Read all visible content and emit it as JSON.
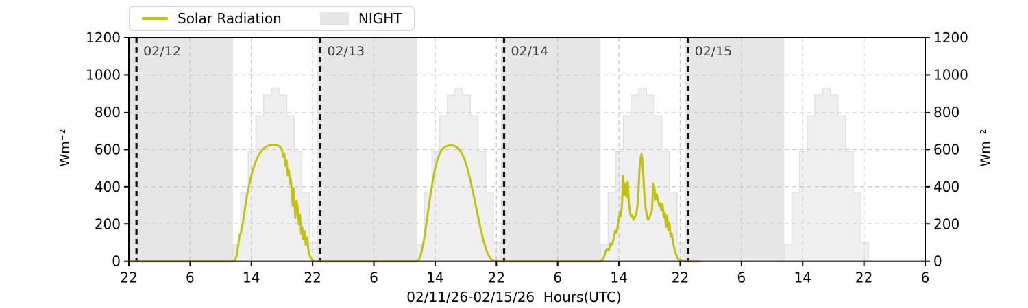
{
  "legend": {
    "items": [
      {
        "label": "Solar Radiation",
        "swatch": "line"
      },
      {
        "label": "NIGHT",
        "swatch": "patch"
      }
    ]
  },
  "colors": {
    "solar_line": "#c2c20c",
    "night_fill": "#e6e6e6",
    "envelope_fill": "#efefef",
    "envelope_edge": "#e0e0e0",
    "grid": "#c9c9c9",
    "day_boundary": "#111111",
    "date_label": "#3a3a3a",
    "axis": "#000000",
    "legend_border": "#d5d5d5"
  },
  "chart_data": {
    "type": "line",
    "title": "",
    "xlabel": "02/11/26-02/15/26  Hours(UTC)",
    "ylabel_left": "Wm⁻²",
    "ylabel_right": "Wm⁻²",
    "grid": true,
    "legend_position": "top-left",
    "xlim_hours_from_start": [
      0,
      104
    ],
    "x_start": "22:00 UTC 02/11/26",
    "ylim": [
      0,
      1200
    ],
    "yticks": [
      0,
      200,
      400,
      600,
      800,
      1000,
      1200
    ],
    "xtick_hours": [
      0,
      8,
      16,
      24,
      32,
      40,
      48,
      56,
      64,
      72,
      80,
      88,
      96,
      104
    ],
    "xtick_labels": [
      "22",
      "6",
      "14",
      "22",
      "6",
      "14",
      "22",
      "6",
      "14",
      "22",
      "6",
      "14",
      "22",
      "6"
    ],
    "day_boundaries": [
      {
        "hour": 1,
        "label": "02/12"
      },
      {
        "hour": 25,
        "label": "02/13"
      },
      {
        "hour": 49,
        "label": "02/14"
      },
      {
        "hour": 73,
        "label": "02/15"
      }
    ],
    "night_regions": [
      [
        0,
        13.6
      ],
      [
        24.6,
        37.6
      ],
      [
        48.6,
        61.6
      ],
      [
        72.6,
        85.6
      ]
    ],
    "clear_sky_envelope": {
      "day_start_hours": [
        13.6,
        37.6,
        61.6,
        85.6
      ],
      "hourly_step_values": [
        90,
        370,
        590,
        780,
        890,
        930,
        890,
        780,
        590,
        370,
        100
      ]
    },
    "series": [
      {
        "name": "Solar Radiation",
        "units": "Wm⁻²",
        "points": [
          [
            0,
            0
          ],
          [
            13.7,
            0
          ],
          [
            13.9,
            8
          ],
          [
            14.1,
            35
          ],
          [
            14.3,
            90
          ],
          [
            14.45,
            140
          ],
          [
            14.6,
            148
          ],
          [
            14.8,
            185
          ],
          [
            15.0,
            235
          ],
          [
            15.3,
            320
          ],
          [
            15.6,
            390
          ],
          [
            15.9,
            445
          ],
          [
            16.2,
            490
          ],
          [
            16.5,
            528
          ],
          [
            16.8,
            556
          ],
          [
            17.1,
            580
          ],
          [
            17.4,
            596
          ],
          [
            17.7,
            608
          ],
          [
            18.0,
            616
          ],
          [
            18.3,
            621
          ],
          [
            18.6,
            624
          ],
          [
            18.9,
            625
          ],
          [
            19.2,
            624
          ],
          [
            19.5,
            620
          ],
          [
            19.8,
            612
          ],
          [
            20.0,
            598
          ],
          [
            20.15,
            560
          ],
          [
            20.3,
            578
          ],
          [
            20.45,
            512
          ],
          [
            20.6,
            540
          ],
          [
            20.75,
            462
          ],
          [
            20.9,
            488
          ],
          [
            21.05,
            415
          ],
          [
            21.15,
            442
          ],
          [
            21.3,
            362
          ],
          [
            21.4,
            298
          ],
          [
            21.5,
            392
          ],
          [
            21.6,
            340
          ],
          [
            21.75,
            232
          ],
          [
            21.9,
            325
          ],
          [
            22.05,
            285
          ],
          [
            22.2,
            198
          ],
          [
            22.35,
            252
          ],
          [
            22.5,
            148
          ],
          [
            22.65,
            182
          ],
          [
            22.8,
            118
          ],
          [
            22.95,
            162
          ],
          [
            23.1,
            88
          ],
          [
            23.3,
            128
          ],
          [
            23.45,
            58
          ],
          [
            23.65,
            28
          ],
          [
            23.85,
            12
          ],
          [
            24.1,
            3
          ],
          [
            24.3,
            0
          ],
          [
            37.6,
            0
          ],
          [
            37.9,
            10
          ],
          [
            38.2,
            45
          ],
          [
            38.5,
            105
          ],
          [
            38.8,
            185
          ],
          [
            39.1,
            275
          ],
          [
            39.4,
            360
          ],
          [
            39.7,
            435
          ],
          [
            40.0,
            498
          ],
          [
            40.3,
            545
          ],
          [
            40.6,
            578
          ],
          [
            40.9,
            600
          ],
          [
            41.2,
            612
          ],
          [
            41.5,
            618
          ],
          [
            41.8,
            621
          ],
          [
            42.1,
            622
          ],
          [
            42.4,
            620
          ],
          [
            42.7,
            615
          ],
          [
            43.0,
            606
          ],
          [
            43.3,
            592
          ],
          [
            43.6,
            570
          ],
          [
            43.9,
            540
          ],
          [
            44.2,
            500
          ],
          [
            44.5,
            452
          ],
          [
            44.8,
            398
          ],
          [
            45.1,
            340
          ],
          [
            45.4,
            280
          ],
          [
            45.7,
            220
          ],
          [
            46.0,
            162
          ],
          [
            46.3,
            112
          ],
          [
            46.6,
            70
          ],
          [
            46.9,
            38
          ],
          [
            47.2,
            16
          ],
          [
            47.5,
            5
          ],
          [
            47.8,
            1
          ],
          [
            48.2,
            0
          ],
          [
            61.6,
            0
          ],
          [
            61.9,
            8
          ],
          [
            62.1,
            30
          ],
          [
            62.3,
            58
          ],
          [
            62.5,
            66
          ],
          [
            62.7,
            60
          ],
          [
            62.9,
            95
          ],
          [
            63.1,
            88
          ],
          [
            63.3,
            118
          ],
          [
            63.5,
            165
          ],
          [
            63.7,
            152
          ],
          [
            63.9,
            205
          ],
          [
            64.1,
            262
          ],
          [
            64.25,
            242
          ],
          [
            64.4,
            305
          ],
          [
            64.55,
            458
          ],
          [
            64.7,
            355
          ],
          [
            64.85,
            415
          ],
          [
            65.0,
            345
          ],
          [
            65.15,
            428
          ],
          [
            65.3,
            312
          ],
          [
            65.45,
            262
          ],
          [
            65.6,
            238
          ],
          [
            65.75,
            248
          ],
          [
            65.9,
            222
          ],
          [
            66.1,
            238
          ],
          [
            66.3,
            258
          ],
          [
            66.5,
            330
          ],
          [
            66.7,
            505
          ],
          [
            66.85,
            560
          ],
          [
            66.95,
            575
          ],
          [
            67.05,
            548
          ],
          [
            67.2,
            450
          ],
          [
            67.35,
            340
          ],
          [
            67.5,
            282
          ],
          [
            67.65,
            245
          ],
          [
            67.8,
            222
          ],
          [
            67.95,
            230
          ],
          [
            68.1,
            248
          ],
          [
            68.3,
            268
          ],
          [
            68.5,
            418
          ],
          [
            68.65,
            392
          ],
          [
            68.8,
            332
          ],
          [
            68.95,
            358
          ],
          [
            69.1,
            328
          ],
          [
            69.25,
            298
          ],
          [
            69.4,
            312
          ],
          [
            69.55,
            272
          ],
          [
            69.7,
            308
          ],
          [
            69.85,
            235
          ],
          [
            70.0,
            258
          ],
          [
            70.15,
            185
          ],
          [
            70.3,
            245
          ],
          [
            70.45,
            168
          ],
          [
            70.6,
            205
          ],
          [
            70.75,
            132
          ],
          [
            70.9,
            148
          ],
          [
            71.1,
            92
          ],
          [
            71.3,
            58
          ],
          [
            71.5,
            32
          ],
          [
            71.7,
            14
          ],
          [
            72.0,
            5
          ],
          [
            72.4,
            1
          ],
          [
            72.7,
            0
          ],
          [
            74.5,
            0
          ]
        ]
      }
    ]
  }
}
